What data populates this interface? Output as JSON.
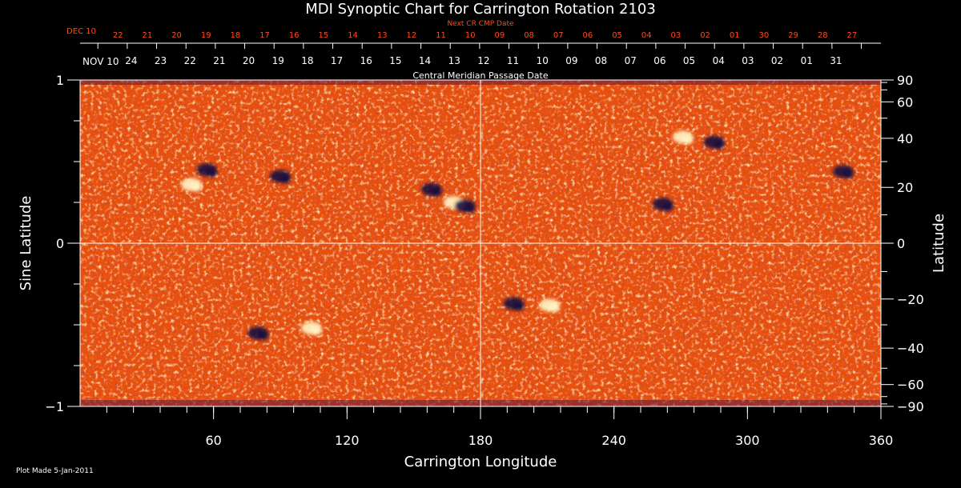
{
  "chart_data": {
    "type": "heatmap",
    "title": "MDI Synoptic Chart for Carrington Rotation 2103",
    "xlabel": "Carrington Longitude",
    "ylabel": "Sine Latitude",
    "y2label": "Latitude",
    "xlim": [
      0,
      360
    ],
    "ylim": [
      -1,
      1
    ],
    "x_ticks": [
      60,
      120,
      180,
      240,
      300,
      360
    ],
    "x_minor_step": 12,
    "y_ticks": [
      -1,
      0,
      1
    ],
    "y_minor": [
      -0.75,
      -0.5,
      -0.25,
      0.25,
      0.5,
      0.75
    ],
    "lat_ticks": [
      {
        "deg": 90,
        "label": "90"
      },
      {
        "deg": 60,
        "label": "60"
      },
      {
        "deg": 40,
        "label": "40"
      },
      {
        "deg": 20,
        "label": "20"
      },
      {
        "deg": 0,
        "label": "0"
      },
      {
        "deg": -20,
        "label": "−20"
      },
      {
        "deg": -40,
        "label": "−40"
      },
      {
        "deg": -60,
        "label": "−60"
      },
      {
        "deg": -90,
        "label": "−90"
      }
    ],
    "lat_minor": [
      70,
      50,
      30,
      10,
      -10,
      -30,
      -50,
      -70,
      -80,
      80
    ],
    "y_tick_labels": [
      "−1",
      "0",
      "1"
    ],
    "grid_lines": {
      "longitude": 180,
      "sine_latitude": 0
    },
    "cmp_axis": {
      "title": "Central Meridian Passage Date",
      "month_label": "NOV 10",
      "month_label_lon": 0,
      "dates": [
        "24",
        "23",
        "22",
        "21",
        "20",
        "19",
        "18",
        "17",
        "16",
        "15",
        "14",
        "13",
        "12",
        "11",
        "10",
        "09",
        "08",
        "07",
        "06",
        "05",
        "04",
        "03",
        "02",
        "01",
        "31"
      ],
      "first_lon": 23,
      "step_lon": 13.2
    },
    "next_cr_axis": {
      "title": "Next CR CMP Date",
      "month_label": "DEC 10",
      "dates": [
        "22",
        "21",
        "20",
        "19",
        "18",
        "17",
        "16",
        "15",
        "14",
        "13",
        "12",
        "11",
        "10",
        "09",
        "08",
        "07",
        "06",
        "05",
        "04",
        "03",
        "02",
        "01",
        "30",
        "29",
        "28",
        "27"
      ],
      "first_lon": 17,
      "step_lon": 13.2
    },
    "active_regions": [
      {
        "lon": 57,
        "sinlat": 0.45,
        "polarity": "negative"
      },
      {
        "lon": 50,
        "sinlat": 0.36,
        "polarity": "positive"
      },
      {
        "lon": 90,
        "sinlat": 0.41,
        "polarity": "negative"
      },
      {
        "lon": 158,
        "sinlat": 0.33,
        "polarity": "negative"
      },
      {
        "lon": 168,
        "sinlat": 0.25,
        "polarity": "positive"
      },
      {
        "lon": 173,
        "sinlat": 0.23,
        "polarity": "negative"
      },
      {
        "lon": 271,
        "sinlat": 0.65,
        "polarity": "positive"
      },
      {
        "lon": 285,
        "sinlat": 0.62,
        "polarity": "negative"
      },
      {
        "lon": 262,
        "sinlat": 0.24,
        "polarity": "negative"
      },
      {
        "lon": 104,
        "sinlat": -0.52,
        "polarity": "positive"
      },
      {
        "lon": 80,
        "sinlat": -0.55,
        "polarity": "negative"
      },
      {
        "lon": 195,
        "sinlat": -0.37,
        "polarity": "negative"
      },
      {
        "lon": 211,
        "sinlat": -0.38,
        "polarity": "positive"
      },
      {
        "lon": 343,
        "sinlat": 0.44,
        "polarity": "negative"
      }
    ],
    "colors": {
      "background": "#e8500e",
      "positive": "#fff6c8",
      "negative": "#1a1040",
      "axis": "#ffffff",
      "next_cr": "#ff4a1a"
    },
    "grid": false,
    "legend": "none"
  },
  "footer": {
    "plot_made": "Plot Made  5-Jan-2011"
  }
}
